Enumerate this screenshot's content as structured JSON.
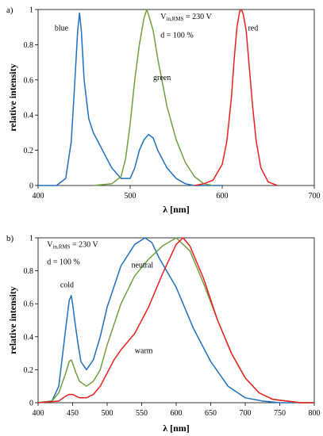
{
  "chart_data": [
    {
      "panel_label": "a)",
      "type": "line",
      "xlabel": "λ [nm]",
      "ylabel": "relative intensity",
      "xlim": [
        400,
        700
      ],
      "ylim": [
        0,
        1
      ],
      "x_ticks": [
        400,
        500,
        600,
        700
      ],
      "y_ticks": [
        0,
        0.2,
        0.4,
        0.6,
        0.8,
        1
      ],
      "x_tick_labels": [
        "400",
        "500",
        "600",
        "700"
      ],
      "y_tick_labels": [
        "0",
        "0.2",
        "0.4",
        "0.6",
        "0.8",
        "1"
      ],
      "grid": false,
      "annotations": [
        {
          "text_main": "V",
          "text_sub": "in,RMS",
          "text_rest": " = 230 V",
          "x": 533,
          "y": 0.945
        },
        {
          "text": "d = 100 %",
          "x": 533,
          "y": 0.84
        }
      ],
      "series": [
        {
          "name": "blue",
          "color": "#1f6fbf",
          "label_pos": [
            418,
            0.88
          ],
          "x": [
            400,
            420,
            430,
            436,
            440,
            443,
            445,
            447,
            450,
            455,
            460,
            470,
            480,
            490,
            500,
            505,
            510,
            515,
            520,
            525,
            530,
            540,
            550,
            560,
            570,
            580,
            600
          ],
          "y": [
            0,
            0,
            0.04,
            0.25,
            0.6,
            0.88,
            0.98,
            0.88,
            0.6,
            0.38,
            0.3,
            0.2,
            0.1,
            0.04,
            0.04,
            0.1,
            0.2,
            0.26,
            0.29,
            0.27,
            0.2,
            0.1,
            0.04,
            0.01,
            0,
            0,
            0
          ]
        },
        {
          "name": "green",
          "color": "#6f9f3f",
          "label_pos": [
            525,
            0.6
          ],
          "x": [
            460,
            480,
            490,
            495,
            500,
            505,
            510,
            515,
            518,
            520,
            525,
            530,
            540,
            550,
            560,
            570,
            580,
            590
          ],
          "y": [
            0,
            0.01,
            0.05,
            0.15,
            0.35,
            0.6,
            0.8,
            0.95,
            1.0,
            0.97,
            0.88,
            0.72,
            0.45,
            0.26,
            0.13,
            0.05,
            0.01,
            0
          ]
        },
        {
          "name": "red",
          "color": "#e82020",
          "label_pos": [
            628,
            0.88
          ],
          "x": [
            570,
            580,
            590,
            600,
            605,
            610,
            613,
            616,
            619,
            621,
            623,
            626,
            629,
            633,
            637,
            642,
            650,
            660
          ],
          "y": [
            0,
            0.01,
            0.03,
            0.12,
            0.25,
            0.5,
            0.72,
            0.9,
            0.99,
            1.0,
            0.97,
            0.88,
            0.7,
            0.45,
            0.25,
            0.1,
            0.02,
            0
          ]
        }
      ]
    },
    {
      "panel_label": "b)",
      "type": "line",
      "xlabel": "λ [nm]",
      "ylabel": "relative intensity",
      "xlim": [
        400,
        800
      ],
      "ylim": [
        0,
        1
      ],
      "x_ticks": [
        400,
        450,
        500,
        550,
        600,
        650,
        700,
        750,
        800
      ],
      "y_ticks": [
        0,
        0.2,
        0.4,
        0.6,
        0.8,
        1
      ],
      "x_tick_labels": [
        "400",
        "450",
        "500",
        "550",
        "600",
        "650",
        "700",
        "750",
        "800"
      ],
      "y_tick_labels": [
        "0",
        "0.2",
        "0.4",
        "0.6",
        "0.8",
        "1"
      ],
      "grid": false,
      "annotations": [
        {
          "text_main": "V",
          "text_sub": "in,RMS",
          "text_rest": " = 230 V",
          "x": 413,
          "y": 0.945
        },
        {
          "text": "d = 100 %",
          "x": 413,
          "y": 0.84
        }
      ],
      "series": [
        {
          "name": "cold",
          "color": "#1f6fbf",
          "label_pos": [
            432,
            0.7
          ],
          "x": [
            400,
            420,
            430,
            440,
            445,
            448,
            450,
            453,
            457,
            462,
            470,
            480,
            490,
            500,
            520,
            540,
            555,
            565,
            575,
            600,
            625,
            650,
            675,
            700,
            725,
            750,
            775,
            800
          ],
          "y": [
            0,
            0.01,
            0.1,
            0.45,
            0.62,
            0.65,
            0.6,
            0.5,
            0.38,
            0.25,
            0.2,
            0.26,
            0.4,
            0.58,
            0.83,
            0.96,
            1.0,
            0.97,
            0.88,
            0.7,
            0.45,
            0.25,
            0.1,
            0.03,
            0.01,
            0,
            0,
            0
          ]
        },
        {
          "name": "neutral",
          "color": "#6f9f3f",
          "label_pos": [
            535,
            0.82
          ],
          "x": [
            400,
            420,
            430,
            440,
            445,
            448,
            450,
            455,
            460,
            470,
            480,
            490,
            500,
            520,
            540,
            560,
            580,
            600,
            620,
            640,
            660,
            680,
            700,
            720,
            740,
            760,
            780,
            800
          ],
          "y": [
            0,
            0.01,
            0.06,
            0.18,
            0.25,
            0.26,
            0.24,
            0.18,
            0.13,
            0.1,
            0.13,
            0.2,
            0.35,
            0.6,
            0.77,
            0.87,
            0.95,
            1.0,
            0.92,
            0.72,
            0.5,
            0.3,
            0.15,
            0.06,
            0.02,
            0.01,
            0,
            0
          ]
        },
        {
          "name": "warm",
          "color": "#e82020",
          "label_pos": [
            540,
            0.3
          ],
          "x": [
            400,
            430,
            440,
            445,
            450,
            455,
            460,
            470,
            480,
            490,
            500,
            510,
            520,
            540,
            560,
            580,
            600,
            610,
            620,
            640,
            660,
            680,
            700,
            720,
            740,
            760,
            780,
            800
          ],
          "y": [
            0,
            0.01,
            0.04,
            0.05,
            0.05,
            0.04,
            0.03,
            0.03,
            0.05,
            0.1,
            0.18,
            0.26,
            0.32,
            0.42,
            0.58,
            0.78,
            0.96,
            1.0,
            0.95,
            0.75,
            0.5,
            0.3,
            0.15,
            0.06,
            0.02,
            0.01,
            0,
            0
          ]
        }
      ]
    }
  ]
}
